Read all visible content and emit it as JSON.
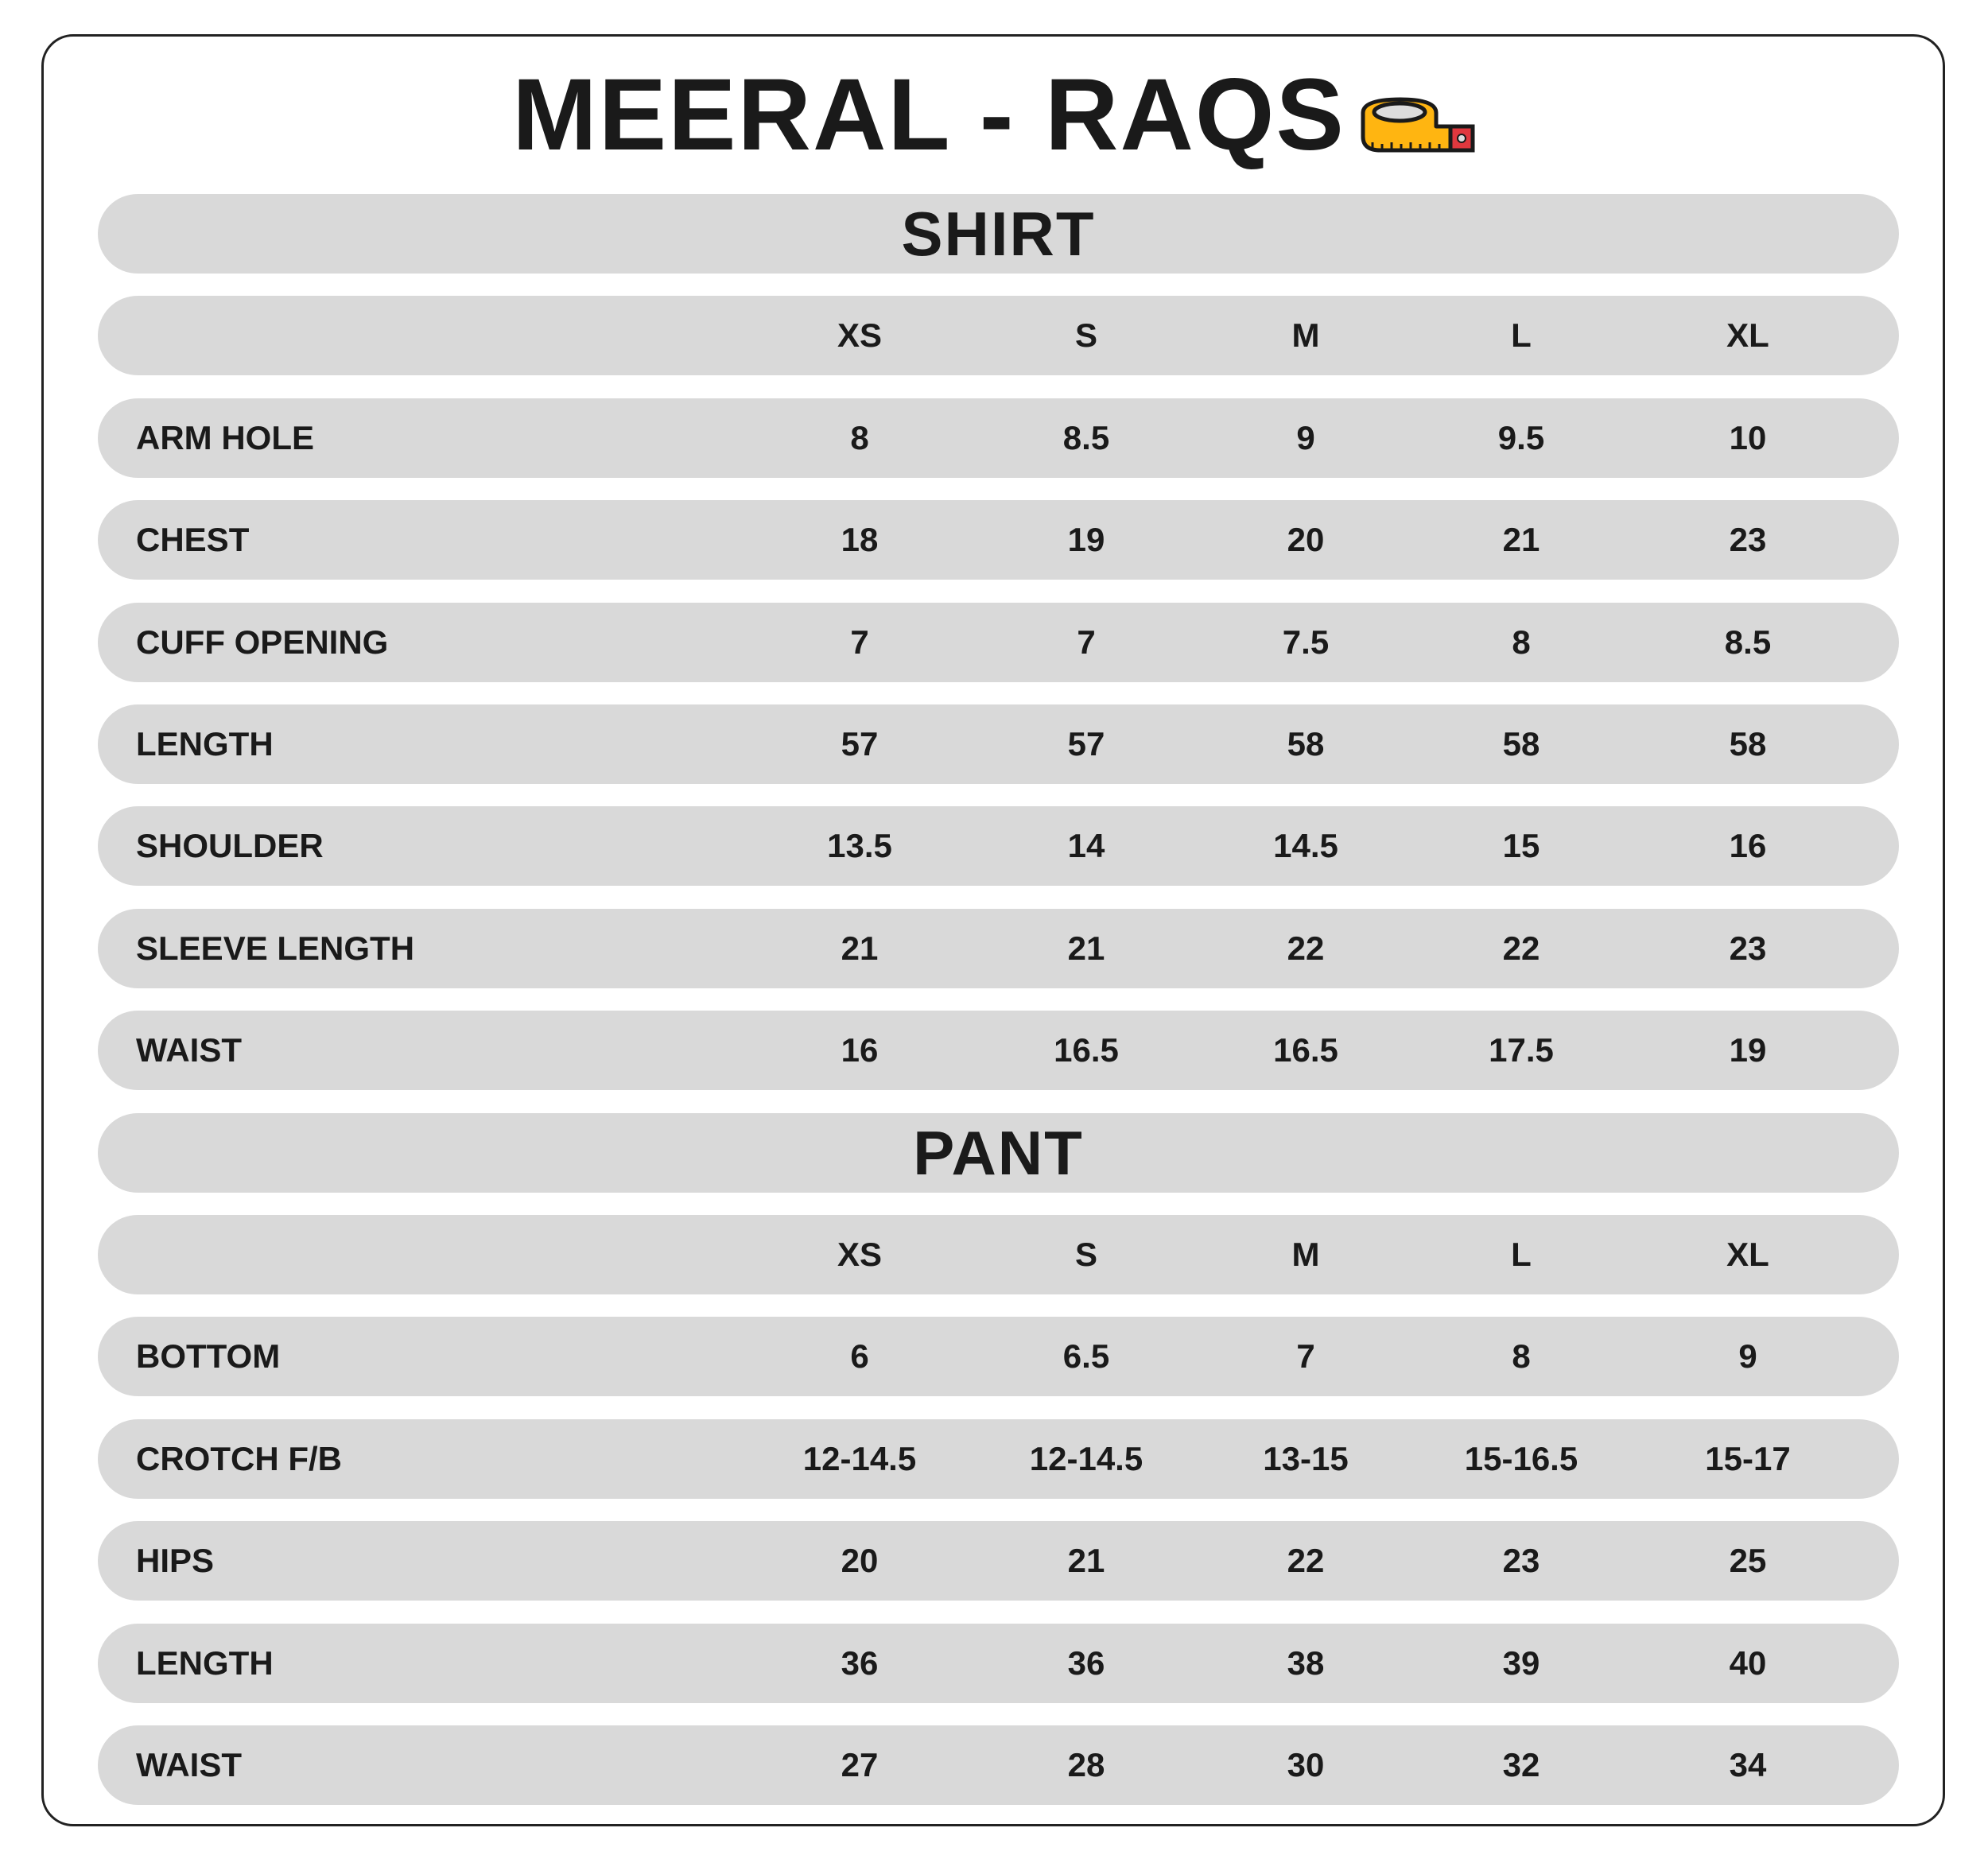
{
  "title": "MEERAL - RAQS",
  "title_icon": "measuring-tape-icon",
  "colors": {
    "bar": "#d9d9d9",
    "text": "#1a1a1a",
    "tape_yellow": "#ffb511",
    "tape_red": "#e0383e"
  },
  "tables": [
    {
      "section": "SHIRT",
      "sizes": [
        "XS",
        "S",
        "M",
        "L",
        "XL"
      ],
      "rows": [
        {
          "label": "ARM HOLE",
          "values": [
            "8",
            "8.5",
            "9",
            "9.5",
            "10"
          ]
        },
        {
          "label": "CHEST",
          "values": [
            "18",
            "19",
            "20",
            "21",
            "23"
          ]
        },
        {
          "label": "CUFF OPENING",
          "values": [
            "7",
            "7",
            "7.5",
            "8",
            "8.5"
          ]
        },
        {
          "label": "LENGTH",
          "values": [
            "57",
            "57",
            "58",
            "58",
            "58"
          ]
        },
        {
          "label": "SHOULDER",
          "values": [
            "13.5",
            "14",
            "14.5",
            "15",
            "16"
          ]
        },
        {
          "label": "SLEEVE LENGTH",
          "values": [
            "21",
            "21",
            "22",
            "22",
            "23"
          ]
        },
        {
          "label": "WAIST",
          "values": [
            "16",
            "16.5",
            "16.5",
            "17.5",
            "19"
          ]
        }
      ]
    },
    {
      "section": "PANT",
      "sizes": [
        "XS",
        "S",
        "M",
        "L",
        "XL"
      ],
      "rows": [
        {
          "label": "BOTTOM",
          "values": [
            "6",
            "6.5",
            "7",
            "8",
            "9"
          ]
        },
        {
          "label": "CROTCH F/B",
          "values": [
            "12-14.5",
            "12-14.5",
            "13-15",
            "15-16.5",
            "15-17"
          ]
        },
        {
          "label": "HIPS",
          "values": [
            "20",
            "21",
            "22",
            "23",
            "25"
          ]
        },
        {
          "label": "LENGTH",
          "values": [
            "36",
            "36",
            "38",
            "39",
            "40"
          ]
        },
        {
          "label": "WAIST",
          "values": [
            "27",
            "28",
            "30",
            "32",
            "34"
          ]
        }
      ]
    }
  ]
}
